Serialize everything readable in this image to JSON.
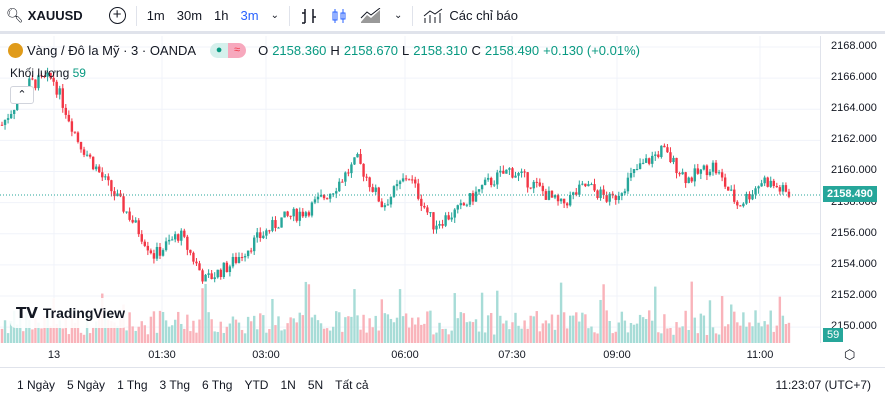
{
  "toolbar": {
    "symbol": "XAUUSD",
    "intervals": [
      "1m",
      "30m",
      "1h",
      "3m"
    ],
    "active_interval": "3m",
    "indicators": "Các chỉ báo"
  },
  "legend": {
    "title": "Vàng / Đô la Mỹ · 3 · OANDA",
    "o_label": "O",
    "o": "2158.360",
    "h_label": "H",
    "h": "2158.670",
    "l_label": "L",
    "l": "2158.310",
    "c_label": "C",
    "c": "2158.490",
    "change": "+0.130 (+0.01%)",
    "volume_label": "Khối lượng",
    "volume": "59"
  },
  "brand": "TradingView",
  "colors": {
    "up": "#26a69a",
    "down": "#f23645",
    "accent": "#2962ff"
  },
  "price_axis": {
    "labels": [
      "2168.000",
      "2166.000",
      "2164.000",
      "2162.000",
      "2160.000",
      "2158.000",
      "2156.000",
      "2154.000",
      "2152.000",
      "2150.000"
    ],
    "current": "2158.490",
    "volume_current": "59"
  },
  "time_axis": [
    "13",
    "01:30",
    "03:00",
    "06:00",
    "07:30",
    "09:00",
    "11:00"
  ],
  "ranges": [
    "1 Ngày",
    "5 Ngày",
    "1 Thg",
    "3 Thg",
    "6 Thg",
    "YTD",
    "1N",
    "5N",
    "Tất cả"
  ],
  "clock": "11:23:07 (UTC+7)",
  "chart_data": {
    "type": "candlestick",
    "ylim": [
      2149,
      2168.5
    ],
    "approx_close_path": [
      2163,
      2165.6,
      2166,
      2162,
      2159.5,
      2157.2,
      2154.6,
      2156,
      2153,
      2154,
      2155.6,
      2156.9,
      2157.5,
      2158.8,
      2160.7,
      2157.8,
      2159.8,
      2156.6,
      2157.5,
      2159.1,
      2160.1,
      2159.1,
      2157.8,
      2159.1,
      2158.1,
      2160.1,
      2161.4,
      2159.5,
      2160.4,
      2157.8,
      2159.5,
      2158.49
    ]
  }
}
